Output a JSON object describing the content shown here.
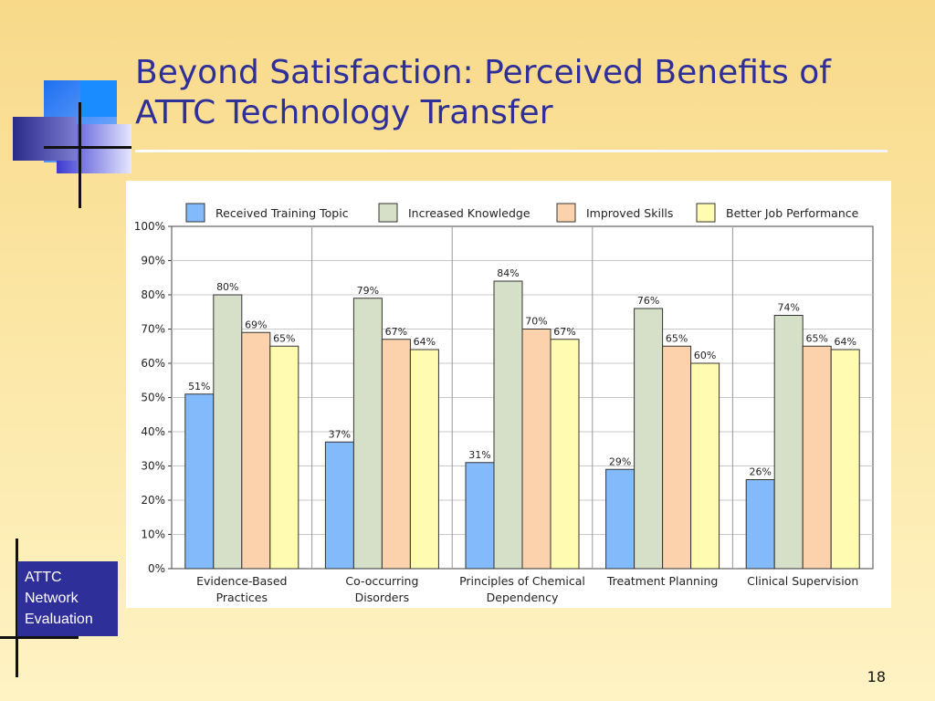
{
  "slide": {
    "title_line1": "Beyond Satisfaction: Perceived Benefits of",
    "title_line2": "ATTC Technology Transfer",
    "badge_lines": [
      "ATTC",
      "Network",
      "Evaluation"
    ],
    "page_number": "18"
  },
  "colors": {
    "title": "#2f2f9a",
    "background_top": "#f8d98a",
    "background_bottom": "#fff3c4",
    "badge": "#2f2f9a"
  },
  "chart_data": {
    "type": "bar",
    "categories": [
      [
        "Evidence-Based",
        "Practices"
      ],
      [
        "Co-occurring",
        "Disorders"
      ],
      [
        "Principles of Chemical",
        "Dependency"
      ],
      [
        "Treatment Planning"
      ],
      [
        "Clinical Supervision"
      ]
    ],
    "series": [
      {
        "name": "Received Training Topic",
        "color": "#82bafc",
        "values": [
          51,
          37,
          31,
          29,
          26
        ]
      },
      {
        "name": "Increased Knowledge",
        "color": "#d6dfc8",
        "values": [
          80,
          79,
          84,
          76,
          74
        ]
      },
      {
        "name": "Improved Skills",
        "color": "#fcd2ac",
        "values": [
          69,
          67,
          70,
          65,
          65
        ]
      },
      {
        "name": "Better Job Performance",
        "color": "#fffcb2",
        "values": [
          65,
          64,
          67,
          60,
          64
        ]
      }
    ],
    "value_suffix": "%",
    "ylim": [
      0,
      100
    ],
    "yticks": [
      "0%",
      "10%",
      "20%",
      "30%",
      "40%",
      "50%",
      "60%",
      "70%",
      "80%",
      "90%",
      "100%"
    ],
    "grid": "horizontal + category separators",
    "legend_position": "top"
  }
}
